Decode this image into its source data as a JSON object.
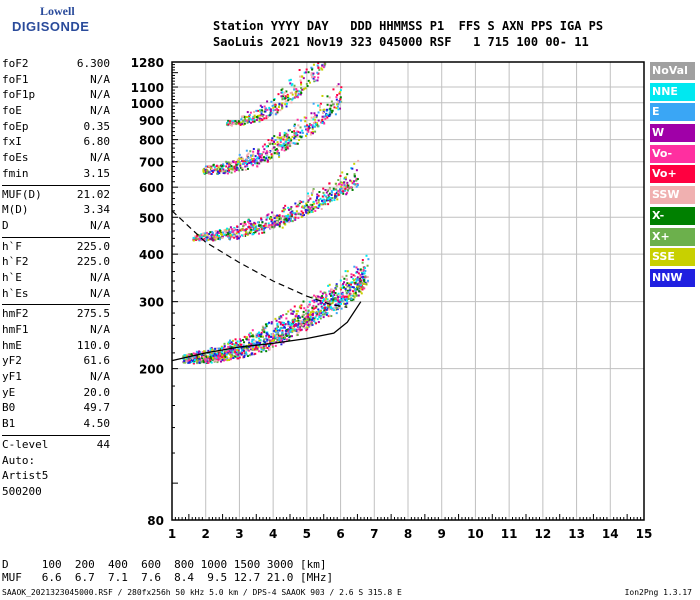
{
  "logo": {
    "top": "Lowell",
    "bottom": "DIGISONDE"
  },
  "header": {
    "line1": "Station YYYY DAY   DDD HHMMSS P1  FFS S AXN PPS IGA PS",
    "line2": "SaoLuis 2021 Nov19 323 045000 RSF   1 715 100 00- 11"
  },
  "params": [
    {
      "k": "foF2",
      "v": "6.300"
    },
    {
      "k": "foF1",
      "v": "N/A"
    },
    {
      "k": "foF1p",
      "v": "N/A"
    },
    {
      "k": "foE",
      "v": "N/A"
    },
    {
      "k": "foEp",
      "v": "0.35"
    },
    {
      "k": "fxI",
      "v": "6.80"
    },
    {
      "k": "foEs",
      "v": "N/A"
    },
    {
      "k": "fmin",
      "v": "3.15"
    },
    {
      "k": "MUF(D)",
      "v": "21.02"
    },
    {
      "k": "M(D)",
      "v": "3.34"
    },
    {
      "k": "D",
      "v": "N/A"
    },
    {
      "k": "h`F",
      "v": "225.0"
    },
    {
      "k": "h`F2",
      "v": "225.0"
    },
    {
      "k": "h`E",
      "v": "N/A"
    },
    {
      "k": "h`Es",
      "v": "N/A"
    },
    {
      "k": "hmF2",
      "v": "275.5"
    },
    {
      "k": "hmF1",
      "v": "N/A"
    },
    {
      "k": "hmE",
      "v": "110.0"
    },
    {
      "k": "yF2",
      "v": "61.6"
    },
    {
      "k": "yF1",
      "v": "N/A"
    },
    {
      "k": "yE",
      "v": "20.0"
    },
    {
      "k": "B0",
      "v": "49.7"
    },
    {
      "k": "B1",
      "v": "4.50"
    },
    {
      "k": "C-level",
      "v": "44"
    }
  ],
  "auto": {
    "label": "Auto:",
    "artist": "Artist5",
    "version": "500200"
  },
  "legend": [
    {
      "label": "NoVal",
      "color": "#a0a0a0"
    },
    {
      "label": "NNE",
      "color": "#00e8f0"
    },
    {
      "label": "E",
      "color": "#3aa6f5"
    },
    {
      "label": "W",
      "color": "#a000a8"
    },
    {
      "label": "Vo-",
      "color": "#ff2fa0"
    },
    {
      "label": "Vo+",
      "color": "#ff0040"
    },
    {
      "label": "SSW",
      "color": "#f0b0b0"
    },
    {
      "label": "X-",
      "color": "#008000"
    },
    {
      "label": "X+",
      "color": "#6cb04c"
    },
    {
      "label": "SSE",
      "color": "#c8d000"
    },
    {
      "label": "NNW",
      "color": "#2020e0"
    }
  ],
  "chart_data": {
    "type": "scatter",
    "title": "",
    "xlabel": "",
    "ylabel": "",
    "xlim": [
      1,
      15
    ],
    "ylim_log": [
      80,
      1280
    ],
    "x_ticks": [
      "1",
      "2",
      "3",
      "4",
      "5",
      "6",
      "7",
      "8",
      "9",
      "10",
      "11",
      "12",
      "13",
      "14",
      "15"
    ],
    "y_ticks": [
      "80",
      "200",
      "300",
      "400",
      "500",
      "600",
      "700",
      "800",
      "900",
      "1000",
      "1100",
      "1280"
    ],
    "grid": true,
    "profile_curve": [
      [
        1.0,
        210
      ],
      [
        2.0,
        220
      ],
      [
        3.0,
        228
      ],
      [
        4.0,
        233
      ],
      [
        5.0,
        240
      ],
      [
        5.8,
        248
      ],
      [
        6.2,
        265
      ],
      [
        6.6,
        300
      ]
    ],
    "dashed_curve": [
      [
        1.0,
        520
      ],
      [
        2.0,
        430
      ],
      [
        3.0,
        380
      ],
      [
        4.0,
        340
      ],
      [
        5.0,
        310
      ],
      [
        5.7,
        295
      ],
      [
        6.2,
        290
      ]
    ],
    "echo_traces": [
      {
        "name": "F2 trace",
        "x_range": [
          1.3,
          6.8
        ],
        "h_range": [
          210,
          340
        ]
      },
      {
        "name": "2F trace",
        "x_range": [
          1.6,
          6.5
        ],
        "h_range": [
          440,
          620
        ]
      },
      {
        "name": "3F trace",
        "x_range": [
          1.9,
          6.0
        ],
        "h_range": [
          660,
          1000
        ]
      },
      {
        "name": "4F trace",
        "x_range": [
          2.6,
          5.6
        ],
        "h_range": [
          880,
          1280
        ]
      }
    ]
  },
  "footer": {
    "d_row": "D     100  200  400  600  800 1000 1500 3000 [km]",
    "muf_row": "MUF   6.6  6.7  7.1  7.6  8.4  9.5 12.7 21.0 [MHz]",
    "file_info": "SAAOK_2021323045000.RSF / 280fx256h 50 kHz 5.0 km / DPS-4 SAAOK 903 / 2.6 S 315.8 E",
    "tool": "Ion2Png 1.3.17"
  }
}
